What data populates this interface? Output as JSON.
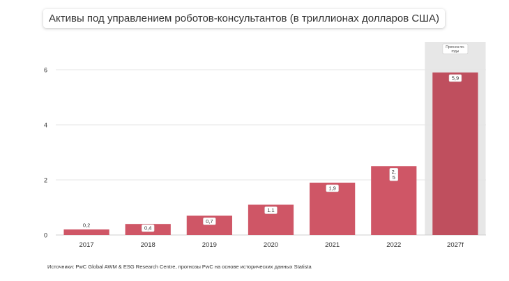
{
  "chart_data": {
    "type": "bar",
    "title": "Активы под управлением роботов-консультантов (в триллионах долларов США)",
    "categories": [
      "2017",
      "2018",
      "2019",
      "2020",
      "2021",
      "2022",
      "2027f"
    ],
    "values": [
      0.2,
      0.4,
      0.7,
      1.1,
      1.9,
      2.5,
      5.9
    ],
    "value_labels": [
      "0,2",
      "0,4",
      "0,7",
      "1.1",
      "1,9",
      "2,\n5",
      "5,9"
    ],
    "ylim": [
      0,
      7
    ],
    "yticks": [
      "0",
      "2",
      "4",
      "6"
    ],
    "grid": true,
    "forecast_category": "2027f",
    "forecast_label": "Прогноз по-\nгоды",
    "colors": {
      "bar": "#cf5666",
      "bar_forecast": "#bf4f5e",
      "forecast_band": "#e7e7e7",
      "grid": "#e6e6e6"
    }
  },
  "source": "Источники: PwC Global AWM & ESG Research Centre, прогнозы PwC на основе исторических данных Statista"
}
